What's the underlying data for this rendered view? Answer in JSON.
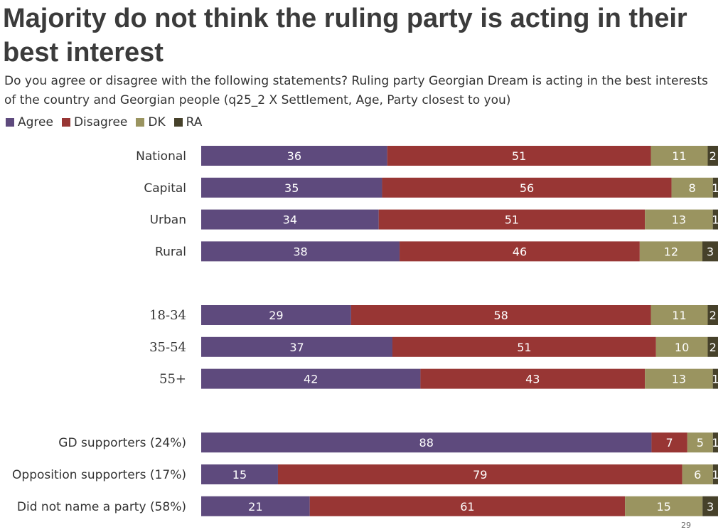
{
  "chart_data": {
    "type": "bar",
    "orientation": "horizontal",
    "stacked": true,
    "title": "Majority do not think the ruling party is acting in their best interest",
    "subtitle": "Do you agree or disagree with the following statements? Ruling party Georgian Dream is acting in the best interests of the country and Georgian people (q25_2 X Settlement, Age, Party closest to you)",
    "legend_position": "top-left",
    "series": [
      {
        "name": "Agree",
        "color": "#5e4a7d"
      },
      {
        "name": "Disagree",
        "color": "#983634"
      },
      {
        "name": "DK",
        "color": "#9a9460"
      },
      {
        "name": "RA",
        "color": "#46412a"
      }
    ],
    "groups": [
      {
        "rows": [
          {
            "label": "National",
            "values": [
              36,
              51,
              11,
              2
            ]
          },
          {
            "label": "Capital",
            "values": [
              35,
              56,
              8,
              1
            ]
          },
          {
            "label": "Urban",
            "values": [
              34,
              51,
              13,
              1
            ]
          },
          {
            "label": "Rural",
            "values": [
              38,
              46,
              12,
              3
            ]
          }
        ]
      },
      {
        "rows": [
          {
            "label": "18-34",
            "values": [
              29,
              58,
              11,
              2
            ]
          },
          {
            "label": "35-54",
            "values": [
              37,
              51,
              10,
              2
            ]
          },
          {
            "label": "55+",
            "values": [
              42,
              43,
              13,
              1
            ]
          }
        ]
      },
      {
        "rows": [
          {
            "label": "GD supporters (24%)",
            "values": [
              88,
              7,
              5,
              1
            ]
          },
          {
            "label": "Opposition supporters (17%)",
            "values": [
              15,
              79,
              6,
              1
            ]
          },
          {
            "label": "Did not name a party (58%)",
            "values": [
              21,
              61,
              15,
              3
            ]
          }
        ]
      }
    ]
  },
  "page_number": "29"
}
